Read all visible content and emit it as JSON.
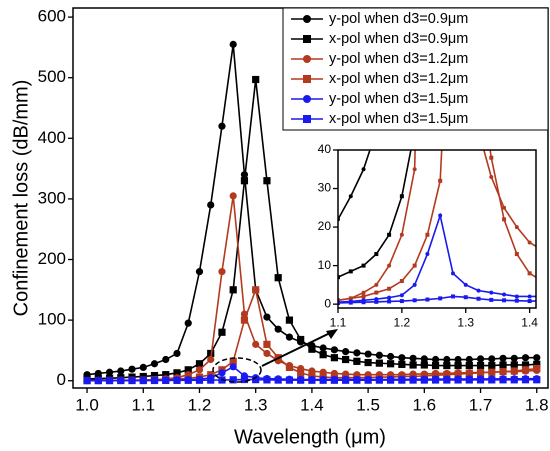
{
  "chart_data": [
    {
      "type": "line",
      "xlabel": "Wavelength (μm)",
      "ylabel": "Confinement loss (dB/mm)",
      "x": [
        1.0,
        1.02,
        1.04,
        1.06,
        1.08,
        1.1,
        1.12,
        1.14,
        1.16,
        1.18,
        1.2,
        1.22,
        1.24,
        1.26,
        1.28,
        1.3,
        1.32,
        1.34,
        1.36,
        1.38,
        1.4,
        1.42,
        1.44,
        1.46,
        1.48,
        1.5,
        1.52,
        1.54,
        1.56,
        1.58,
        1.6,
        1.62,
        1.64,
        1.66,
        1.68,
        1.7,
        1.72,
        1.74,
        1.76,
        1.78,
        1.8
      ],
      "xlim": [
        0.975,
        1.82
      ],
      "xticks": [
        {
          "value": 1,
          "label": "1.0"
        },
        1.1,
        1.2,
        1.3,
        1.4,
        1.5,
        1.6,
        1.7,
        1.8
      ],
      "ylim": [
        -12,
        615
      ],
      "yticks": [
        0,
        100,
        200,
        300,
        400,
        500,
        600
      ],
      "legend": "upper right",
      "series": [
        {
          "name": "y-pol when d3=0.9μm",
          "color": "#000000",
          "marker": "circle",
          "values": [
            10,
            12,
            14,
            16,
            19,
            22,
            28,
            35,
            45,
            95,
            180,
            290,
            420,
            555,
            340,
            150,
            105,
            85,
            72,
            64,
            58,
            54,
            51,
            48,
            46,
            44,
            42,
            40,
            38,
            37,
            36,
            35,
            35,
            35,
            35,
            36,
            36,
            37,
            37,
            38,
            38
          ]
        },
        {
          "name": "x-pol when d3=0.9μm",
          "color": "#000000",
          "marker": "square",
          "values": [
            3,
            3.5,
            4,
            5,
            6,
            7,
            8.5,
            10,
            13,
            18,
            28,
            45,
            80,
            150,
            330,
            497,
            330,
            170,
            100,
            68,
            52,
            43,
            38,
            35,
            32,
            30,
            29,
            28,
            27,
            26,
            26,
            25,
            25,
            25,
            25,
            25,
            25,
            26,
            26,
            26,
            27
          ]
        },
        {
          "name": "y-pol when d3=1.2μm",
          "color": "#b33a1f",
          "marker": "circle",
          "values": [
            0.5,
            0.6,
            0.7,
            0.8,
            0.9,
            1,
            1.5,
            3,
            5,
            10,
            18,
            35,
            180,
            305,
            110,
            60,
            45,
            33,
            25,
            20,
            16,
            14,
            12,
            11,
            10,
            10,
            10,
            10,
            10,
            11,
            11,
            12,
            12,
            13,
            13,
            14,
            14,
            15,
            15,
            16,
            17
          ]
        },
        {
          "name": "x-pol when d3=1.2μm",
          "color": "#b33a1f",
          "marker": "square",
          "values": [
            0.3,
            0.4,
            0.5,
            0.6,
            0.8,
            1,
            1.5,
            2,
            3,
            4,
            6,
            10,
            18,
            32,
            100,
            150,
            60,
            38,
            22,
            13,
            8,
            6,
            5,
            5,
            5,
            5,
            6,
            6,
            7,
            7,
            8,
            9,
            10,
            11,
            12,
            13,
            14,
            15,
            16,
            18,
            20
          ]
        },
        {
          "name": "y-pol when d3=1.5μm",
          "color": "#1a1aee",
          "marker": "circle",
          "values": [
            0.2,
            0.2,
            0.3,
            0.3,
            0.4,
            0.5,
            0.7,
            1,
            1.3,
            1.7,
            2.3,
            5,
            13,
            23,
            8,
            5,
            3.5,
            3,
            2.5,
            2,
            2,
            2,
            2,
            2,
            2,
            2,
            2,
            2.2,
            2.3,
            2.4,
            2.5,
            2.6,
            2.7,
            2.8,
            2.9,
            3,
            3,
            3.1,
            3.2,
            3.3,
            3.4
          ]
        },
        {
          "name": "x-pol when d3=1.5μm",
          "color": "#1a1aee",
          "marker": "square",
          "values": [
            0.2,
            0.2,
            0.2,
            0.3,
            0.3,
            0.3,
            0.4,
            0.5,
            0.6,
            0.7,
            0.8,
            1,
            1.2,
            1.5,
            2,
            1.8,
            1.4,
            1.1,
            1,
            0.9,
            0.8,
            0.8,
            0.8,
            0.8,
            0.9,
            0.9,
            1,
            1,
            1,
            1.1,
            1.1,
            1.2,
            1.2,
            1.3,
            1.3,
            1.4,
            1.4,
            1.5,
            1.5,
            1.6,
            1.6
          ]
        }
      ]
    },
    {
      "type": "line",
      "xlim": [
        1.1,
        1.41
      ],
      "xticks": [
        1.1,
        1.2,
        1.3,
        1.4
      ],
      "ylim": [
        -1,
        40
      ],
      "yticks": [
        0,
        10,
        20,
        30,
        40
      ]
    }
  ]
}
